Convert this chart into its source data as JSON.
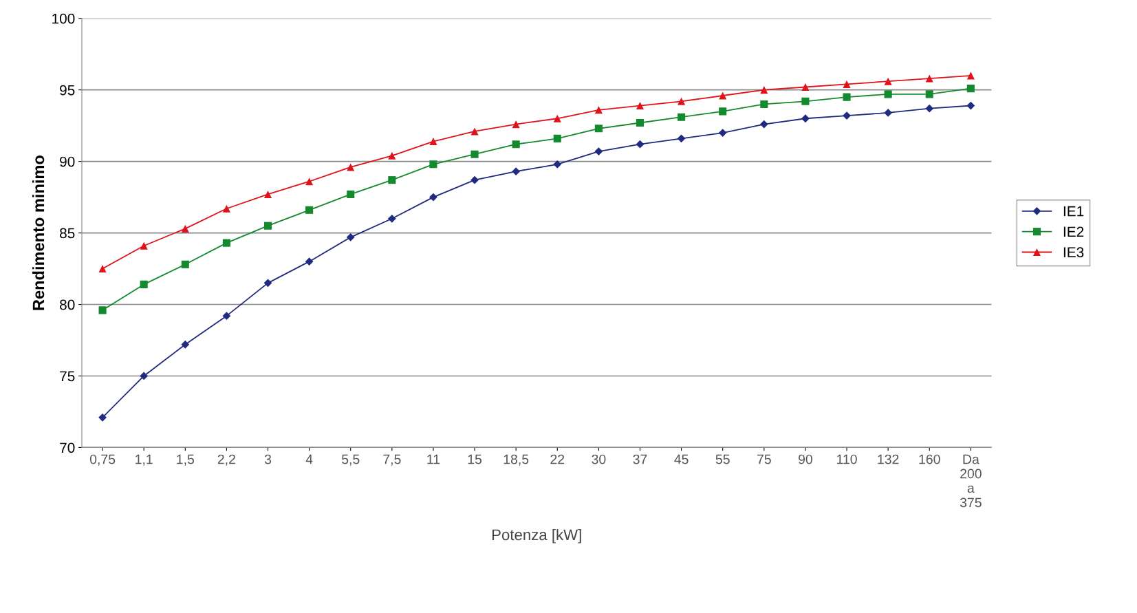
{
  "chart_data": {
    "type": "line",
    "xlabel": "Potenza [kW]",
    "ylabel": "Rendimento minimo",
    "categories": [
      "0,75",
      "1,1",
      "1,5",
      "2,2",
      "3",
      "4",
      "5,5",
      "7,5",
      "11",
      "15",
      "18,5",
      "22",
      "30",
      "37",
      "45",
      "55",
      "75",
      "90",
      "110",
      "132",
      "160",
      "Da\n200\na\n375"
    ],
    "series": [
      {
        "name": "IE1",
        "color": "#1f2a80",
        "marker": "diamond",
        "values": [
          72.1,
          75.0,
          77.2,
          79.2,
          81.5,
          83.0,
          84.7,
          86.0,
          87.5,
          88.7,
          89.3,
          89.8,
          90.7,
          91.2,
          91.6,
          92.0,
          92.6,
          93.0,
          93.2,
          93.4,
          93.7,
          93.9
        ]
      },
      {
        "name": "IE2",
        "color": "#138a2e",
        "marker": "square",
        "values": [
          79.6,
          81.4,
          82.8,
          84.3,
          85.5,
          86.6,
          87.7,
          88.7,
          89.8,
          90.5,
          91.2,
          91.6,
          92.3,
          92.7,
          93.1,
          93.5,
          94.0,
          94.2,
          94.5,
          94.7,
          94.7,
          95.1
        ]
      },
      {
        "name": "IE3",
        "color": "#e0121b",
        "marker": "triangle",
        "values": [
          82.5,
          84.1,
          85.3,
          86.7,
          87.7,
          88.6,
          89.6,
          90.4,
          91.4,
          92.1,
          92.6,
          93.0,
          93.6,
          93.9,
          94.2,
          94.6,
          95.0,
          95.2,
          95.4,
          95.6,
          95.8,
          96.0
        ]
      }
    ],
    "ylim": [
      70,
      100
    ],
    "yticks": [
      70,
      75,
      80,
      85,
      90,
      95,
      100
    ],
    "grid": "y",
    "legend": "right"
  }
}
